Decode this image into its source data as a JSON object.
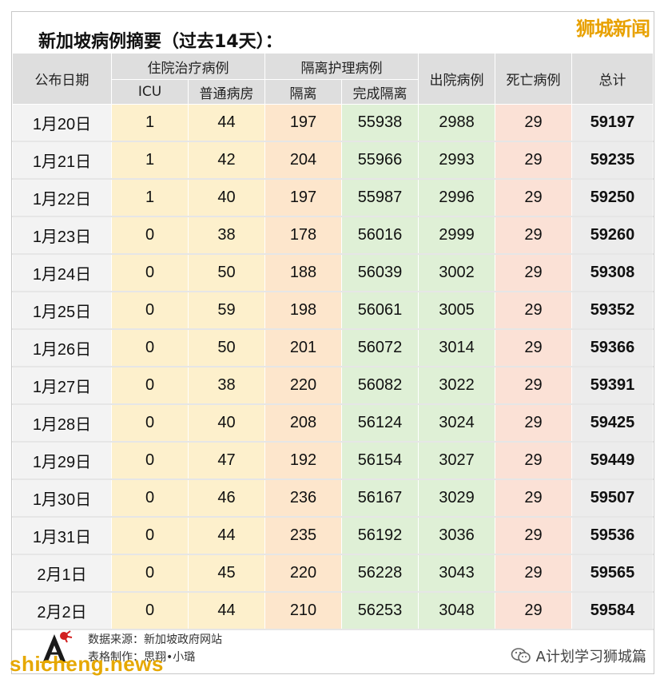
{
  "brand_top": "狮城新闻",
  "title": "新加坡病例摘要（过去14天）：",
  "headers": {
    "date": "公布日期",
    "hospital_group": "住院治疗病例",
    "isolation_group": "隔离护理病例",
    "icu": "ICU",
    "ward": "普通病房",
    "isolation": "隔离",
    "done_isolation": "完成隔离",
    "discharged": "出院病例",
    "deaths": "死亡病例",
    "total": "总计"
  },
  "rows": [
    {
      "date": "1月20日",
      "icu": "1",
      "ward": "44",
      "iso": "197",
      "done": "55938",
      "disc": "2988",
      "death": "29",
      "total": "59197"
    },
    {
      "date": "1月21日",
      "icu": "1",
      "ward": "42",
      "iso": "204",
      "done": "55966",
      "disc": "2993",
      "death": "29",
      "total": "59235"
    },
    {
      "date": "1月22日",
      "icu": "1",
      "ward": "40",
      "iso": "197",
      "done": "55987",
      "disc": "2996",
      "death": "29",
      "total": "59250"
    },
    {
      "date": "1月23日",
      "icu": "0",
      "ward": "38",
      "iso": "178",
      "done": "56016",
      "disc": "2999",
      "death": "29",
      "total": "59260"
    },
    {
      "date": "1月24日",
      "icu": "0",
      "ward": "50",
      "iso": "188",
      "done": "56039",
      "disc": "3002",
      "death": "29",
      "total": "59308"
    },
    {
      "date": "1月25日",
      "icu": "0",
      "ward": "59",
      "iso": "198",
      "done": "56061",
      "disc": "3005",
      "death": "29",
      "total": "59352"
    },
    {
      "date": "1月26日",
      "icu": "0",
      "ward": "50",
      "iso": "201",
      "done": "56072",
      "disc": "3014",
      "death": "29",
      "total": "59366"
    },
    {
      "date": "1月27日",
      "icu": "0",
      "ward": "38",
      "iso": "220",
      "done": "56082",
      "disc": "3022",
      "death": "29",
      "total": "59391"
    },
    {
      "date": "1月28日",
      "icu": "0",
      "ward": "40",
      "iso": "208",
      "done": "56124",
      "disc": "3024",
      "death": "29",
      "total": "59425"
    },
    {
      "date": "1月29日",
      "icu": "0",
      "ward": "47",
      "iso": "192",
      "done": "56154",
      "disc": "3027",
      "death": "29",
      "total": "59449"
    },
    {
      "date": "1月30日",
      "icu": "0",
      "ward": "46",
      "iso": "236",
      "done": "56167",
      "disc": "3029",
      "death": "29",
      "total": "59507"
    },
    {
      "date": "1月31日",
      "icu": "0",
      "ward": "44",
      "iso": "235",
      "done": "56192",
      "disc": "3036",
      "death": "29",
      "total": "59536"
    },
    {
      "date": "2月1日",
      "icu": "0",
      "ward": "45",
      "iso": "220",
      "done": "56228",
      "disc": "3043",
      "death": "29",
      "total": "59565"
    },
    {
      "date": "2月2日",
      "icu": "0",
      "ward": "44",
      "iso": "210",
      "done": "56253",
      "disc": "3048",
      "death": "29",
      "total": "59584"
    }
  ],
  "footer": {
    "source": "数据来源：新加坡政府网站",
    "maker": "表格制作：思翔•小璐",
    "watermark_left": "shicheng.news",
    "watermark_right": "A计划学习狮城篇",
    "logo_icon": "a-plan-logo-icon",
    "wechat_icon": "wechat-icon"
  },
  "colors": {
    "hospital": "#fdf0cc",
    "isolation": "#fde6cc",
    "done_isolation": "#dff0d6",
    "discharged": "#dff0d6",
    "deaths": "#fbe1d6",
    "total": "#ececec",
    "header": "#dedede",
    "brand": "#e8a100"
  }
}
